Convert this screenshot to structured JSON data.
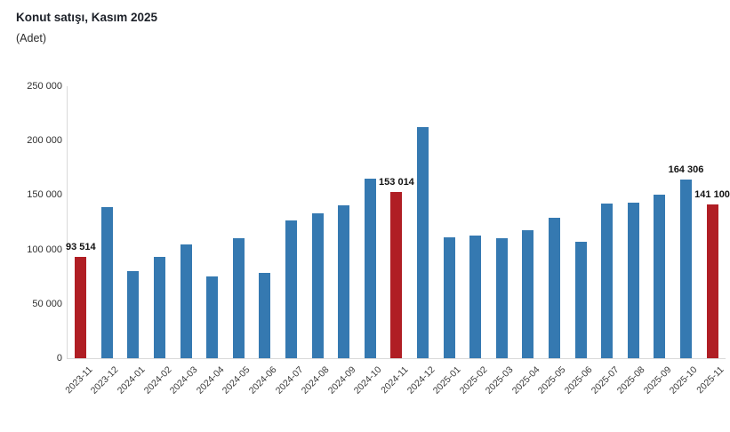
{
  "header": {
    "title": "Konut satışı, Kasım 2025",
    "subtitle": "(Adet)"
  },
  "chart_data": {
    "type": "bar",
    "title": "Konut satışı, Kasım 2025",
    "unit_label": "(Adet)",
    "categories": [
      "2023-11",
      "2023-12",
      "2024-01",
      "2024-02",
      "2024-03",
      "2024-04",
      "2024-05",
      "2024-06",
      "2024-07",
      "2024-08",
      "2024-09",
      "2024-10",
      "2024-11",
      "2024-12",
      "2025-01",
      "2025-02",
      "2025-03",
      "2025-04",
      "2025-05",
      "2025-06",
      "2025-07",
      "2025-08",
      "2025-09",
      "2025-10",
      "2025-11"
    ],
    "values": [
      93514,
      138500,
      80000,
      93500,
      104500,
      75000,
      110000,
      78500,
      126500,
      133500,
      140500,
      165000,
      153014,
      212500,
      111500,
      112500,
      110000,
      118000,
      129500,
      107000,
      142000,
      143000,
      150500,
      164306,
      141100
    ],
    "highlighted_indices": [
      0,
      12,
      24
    ],
    "value_labels": {
      "0": "93 514",
      "12": "153 014",
      "23": "164 306",
      "24": "141 100"
    },
    "ylim": [
      0,
      250000
    ],
    "yticks": [
      "250 000",
      "200 000",
      "150 000",
      "100 000",
      "50 000",
      "0"
    ],
    "ytick_values": [
      250000,
      200000,
      150000,
      100000,
      50000,
      0
    ],
    "xlabel": "",
    "ylabel": "",
    "grid": false,
    "legend": "none",
    "colors": {
      "bar_default": "#3579b1",
      "bar_highlight": "#b01e24",
      "axis_line": "#d9d9d9",
      "value_label": "#111111",
      "tick_label": "#3a3a3a"
    }
  }
}
